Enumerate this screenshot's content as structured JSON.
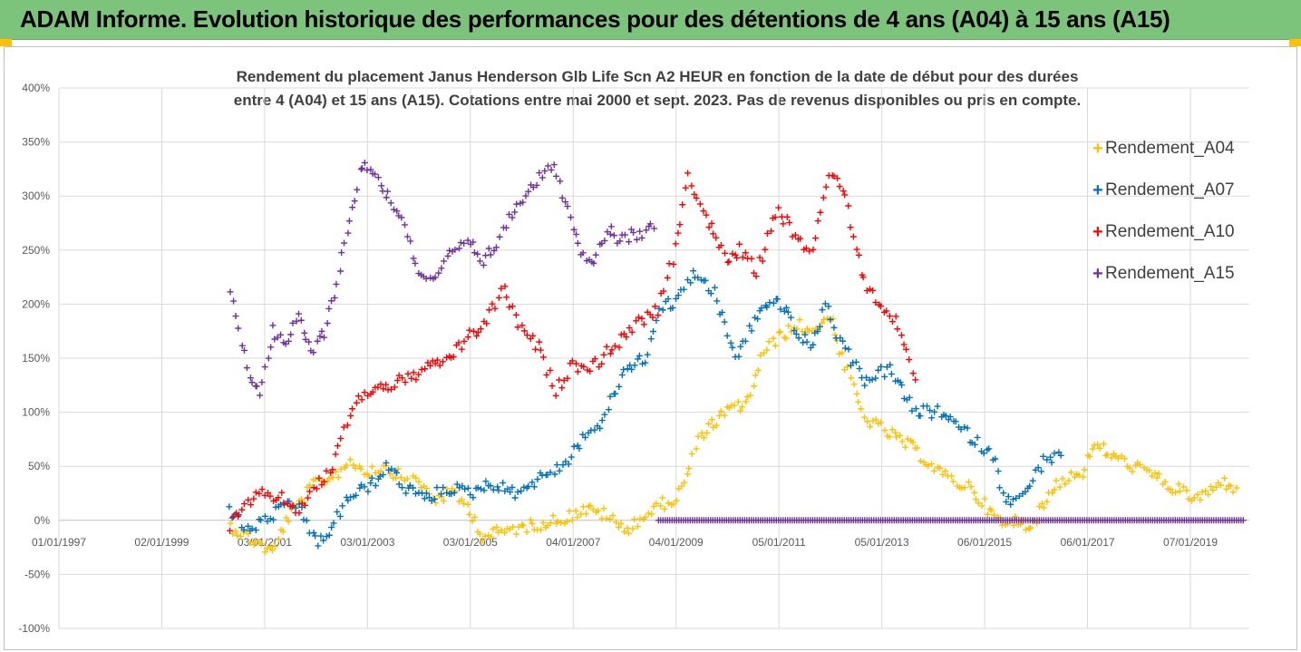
{
  "header": {
    "title": "ADAM Informe. Evolution historique des performances pour des détentions de 4 ans (A04) à 15 ans (A15)"
  },
  "colors": {
    "banner": "#7cc47c",
    "corner": "#ffc000",
    "A04": "#ffc000",
    "A07": "#0070c0",
    "A10": "#ff0000",
    "A15": "#7030a0"
  },
  "chart_data": {
    "type": "scatter",
    "title_lines": [
      "Rendement du placement Janus Henderson Glb Life Scn A2 HEUR en fonction de la date de début pour des durées",
      "entre 4 (A04) et 15 ans (A15). Cotations entre mai 2000 et sept. 2023. Pas de revenus disponibles ou pris en compte."
    ],
    "xlabel": "",
    "ylabel": "",
    "x_range": [
      "1997-01-01",
      "2020-03-01"
    ],
    "y_range": [
      -100,
      400
    ],
    "y_ticks": [
      400,
      350,
      300,
      250,
      200,
      150,
      100,
      50,
      0,
      -50,
      -100
    ],
    "y_tick_labels": [
      "400%",
      "350%",
      "300%",
      "250%",
      "200%",
      "150%",
      "100%",
      "50%",
      "0%",
      "-50%",
      "-100%"
    ],
    "x_ticks": [
      "1997-01-01",
      "1999-01-02",
      "2001-01-02",
      "2003-01-03",
      "2005-01-03",
      "2007-01-04",
      "2009-01-04",
      "2011-01-05",
      "2013-01-05",
      "2015-01-06",
      "2017-01-06",
      "2019-01-07"
    ],
    "x_tick_labels": [
      "01/01/1997",
      "02/01/1999",
      "03/01/2001",
      "03/01/2003",
      "03/01/2005",
      "04/01/2007",
      "04/01/2009",
      "05/01/2011",
      "05/01/2013",
      "06/01/2015",
      "06/01/2017",
      "07/01/2019"
    ],
    "grid": true,
    "legend_position": "right",
    "series": [
      {
        "name": "Rendement_A04",
        "color": "#ffc000",
        "x": [
          "2000-05",
          "2000-11",
          "2001-03",
          "2001-06",
          "2001-09",
          "2002-01",
          "2002-05",
          "2002-09",
          "2003-01",
          "2003-05",
          "2003-09",
          "2004-01",
          "2004-05",
          "2004-09",
          "2005-01",
          "2005-04",
          "2005-09",
          "2006-03",
          "2006-09",
          "2007-01",
          "2007-04",
          "2007-09",
          "2008-01",
          "2008-06",
          "2008-10",
          "2009-01",
          "2009-03",
          "2009-07",
          "2010-01",
          "2010-06",
          "2010-09",
          "2011-01",
          "2011-06",
          "2011-09",
          "2012-01",
          "2012-04",
          "2012-09",
          "2013-03",
          "2013-09",
          "2014-04",
          "2014-10",
          "2015-03",
          "2015-06",
          "2015-09",
          "2015-12",
          "2016-03",
          "2016-06",
          "2016-12",
          "2017-03",
          "2017-09",
          "2018-03",
          "2018-09",
          "2019-03",
          "2019-09",
          "2019-12"
        ],
        "y": [
          -5,
          -20,
          -30,
          0,
          15,
          35,
          40,
          55,
          45,
          50,
          40,
          35,
          20,
          25,
          10,
          -15,
          -10,
          -5,
          0,
          5,
          10,
          5,
          -10,
          5,
          15,
          20,
          35,
          80,
          100,
          110,
          150,
          170,
          180,
          175,
          190,
          150,
          95,
          80,
          65,
          40,
          30,
          5,
          -5,
          0,
          -5,
          15,
          35,
          45,
          70,
          55,
          45,
          30,
          20,
          35,
          30
        ]
      },
      {
        "name": "Rendement_A07",
        "color": "#0070c0",
        "x": [
          "2000-05",
          "2000-09",
          "2001-01",
          "2001-05",
          "2001-09",
          "2002-01",
          "2002-04",
          "2002-08",
          "2003-01",
          "2003-06",
          "2003-10",
          "2004-03",
          "2004-08",
          "2005-01",
          "2005-06",
          "2005-11",
          "2006-06",
          "2006-12",
          "2007-04",
          "2007-08",
          "2008-01",
          "2008-06",
          "2008-10",
          "2009-01",
          "2009-05",
          "2009-10",
          "2010-03",
          "2010-08",
          "2011-01",
          "2011-06",
          "2011-09",
          "2011-12",
          "2012-04",
          "2012-09",
          "2013-03",
          "2013-09",
          "2014-03",
          "2014-09",
          "2015-03",
          "2015-06",
          "2015-10",
          "2016-03",
          "2016-07"
        ],
        "y": [
          10,
          -10,
          0,
          10,
          15,
          -20,
          -15,
          20,
          30,
          50,
          30,
          20,
          30,
          25,
          35,
          25,
          40,
          55,
          80,
          90,
          140,
          150,
          200,
          200,
          230,
          210,
          150,
          190,
          205,
          170,
          160,
          200,
          160,
          130,
          140,
          100,
          100,
          80,
          60,
          20,
          20,
          55,
          60
        ]
      },
      {
        "name": "Rendement_A10",
        "color": "#ff0000",
        "x": [
          "2000-05",
          "2000-09",
          "2001-01",
          "2001-05",
          "2001-09",
          "2002-01",
          "2002-05",
          "2002-09",
          "2003-01",
          "2003-06",
          "2003-10",
          "2004-03",
          "2004-08",
          "2005-01",
          "2005-05",
          "2005-09",
          "2006-01",
          "2006-05",
          "2006-09",
          "2007-01",
          "2007-05",
          "2007-09",
          "2008-01",
          "2008-05",
          "2008-09",
          "2009-01",
          "2009-04",
          "2009-08",
          "2010-01",
          "2010-04",
          "2010-08",
          "2011-01",
          "2011-05",
          "2011-09",
          "2012-01",
          "2012-04",
          "2012-09",
          "2013-01",
          "2013-05",
          "2013-09"
        ],
        "y": [
          -5,
          15,
          25,
          20,
          10,
          30,
          50,
          100,
          120,
          125,
          130,
          140,
          150,
          170,
          185,
          215,
          175,
          160,
          120,
          145,
          140,
          155,
          170,
          185,
          195,
          250,
          320,
          280,
          240,
          250,
          230,
          290,
          260,
          250,
          320,
          310,
          220,
          200,
          180,
          130
        ]
      },
      {
        "name": "Rendement_A15",
        "color": "#7030a0",
        "x": [
          "2000-05",
          "2000-09",
          "2000-12",
          "2001-03",
          "2001-06",
          "2001-09",
          "2001-12",
          "2002-03",
          "2002-06",
          "2002-09",
          "2002-12",
          "2003-03",
          "2003-06",
          "2003-09",
          "2004-01",
          "2004-05",
          "2004-09",
          "2005-01",
          "2005-04",
          "2005-08",
          "2005-12",
          "2006-04",
          "2006-08",
          "2006-12",
          "2007-03",
          "2007-06",
          "2007-09",
          "2007-12",
          "2008-04",
          "2008-08"
        ],
        "y": [
          215,
          140,
          120,
          175,
          160,
          190,
          155,
          175,
          220,
          280,
          330,
          320,
          300,
          280,
          230,
          220,
          250,
          255,
          240,
          260,
          295,
          310,
          330,
          290,
          250,
          240,
          270,
          260,
          265,
          270
        ],
        "tail_x": [
          "2008-09",
          "2020-02"
        ],
        "tail_y": [
          0,
          0
        ]
      }
    ]
  }
}
